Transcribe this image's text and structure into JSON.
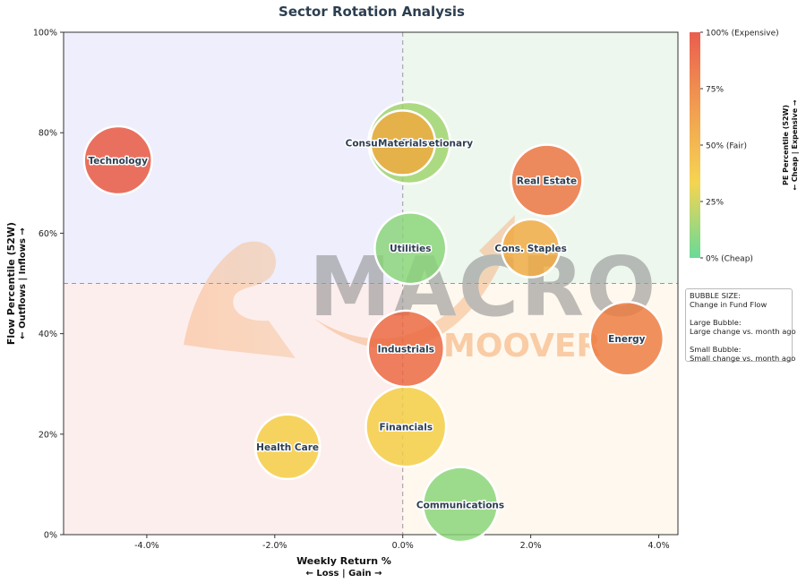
{
  "chart_data": {
    "type": "scatter",
    "title": "Sector Rotation Analysis",
    "xlabel": "Weekly Return %",
    "xlabel_sub": "← Loss | Gain →",
    "ylabel": "Flow Percentile (52W)",
    "ylabel_sub": "← Outflows | Inflows →",
    "xlim": [
      -5.3,
      4.3
    ],
    "ylim": [
      0,
      100
    ],
    "x_ticks": [
      -4.0,
      -2.0,
      0.0,
      2.0,
      4.0
    ],
    "x_tick_labels": [
      "-4.0%",
      "-2.0%",
      "0.0%",
      "2.0%",
      "4.0%"
    ],
    "y_ticks": [
      0,
      20,
      40,
      60,
      80,
      100
    ],
    "y_tick_labels": [
      "0%",
      "20%",
      "40%",
      "60%",
      "80%",
      "100%"
    ],
    "quadrant_dividers": {
      "x": 0,
      "y": 50
    },
    "quadrant_colors": {
      "top_left": "#eeeefc",
      "top_right": "#eef7ee",
      "bottom_left": "#fdeeee",
      "bottom_right": "#fff8ee"
    },
    "points": [
      {
        "label": "Technology",
        "x": -4.45,
        "y": 74.5,
        "pe": 96,
        "size": 1.0
      },
      {
        "label": "Consumer Discretionary",
        "x": 0.1,
        "y": 78.0,
        "pe": 15,
        "size": 1.2
      },
      {
        "label": "Materials",
        "x": 0.0,
        "y": 78.0,
        "pe": 55,
        "size": 0.95
      },
      {
        "label": "Real Estate",
        "x": 2.25,
        "y": 70.5,
        "pe": 82,
        "size": 1.05
      },
      {
        "label": "Utilities",
        "x": 0.12,
        "y": 57.0,
        "pe": 10,
        "size": 1.05
      },
      {
        "label": "Cons. Staples",
        "x": 2.0,
        "y": 57.0,
        "pe": 55,
        "size": 0.85
      },
      {
        "label": "Energy",
        "x": 3.5,
        "y": 39.0,
        "pe": 78,
        "size": 1.08
      },
      {
        "label": "Industrials",
        "x": 0.05,
        "y": 37.0,
        "pe": 88,
        "size": 1.12
      },
      {
        "label": "Financials",
        "x": 0.05,
        "y": 21.5,
        "pe": 35,
        "size": 1.18
      },
      {
        "label": "Health Care",
        "x": -1.8,
        "y": 17.5,
        "pe": 35,
        "size": 0.95
      },
      {
        "label": "Communications",
        "x": 0.9,
        "y": 6.0,
        "pe": 10,
        "size": 1.1
      }
    ],
    "colorbar": {
      "label": "PE Percentile (52W)",
      "label_sub": "← Cheap | Expensive →",
      "ticks": [
        {
          "value": 100,
          "label": "100% (Expensive)"
        },
        {
          "value": 75,
          "label": "75%"
        },
        {
          "value": 50,
          "label": "50% (Fair)"
        },
        {
          "value": 25,
          "label": "25%"
        },
        {
          "value": 0,
          "label": "0% (Cheap)"
        }
      ],
      "colors": [
        "#58d68d",
        "#f4d03f",
        "#f0923e",
        "#e74c3c"
      ]
    },
    "size_legend": {
      "title": "BUBBLE SIZE:",
      "line1": "Change in Fund Flow",
      "large_title": "Large Bubble:",
      "large_desc": "Large change vs. month ago",
      "small_title": "Small Bubble:",
      "small_desc": "Small change vs. month ago"
    },
    "watermark": {
      "line1": "MACRO",
      "line2": "MOOVER"
    }
  }
}
